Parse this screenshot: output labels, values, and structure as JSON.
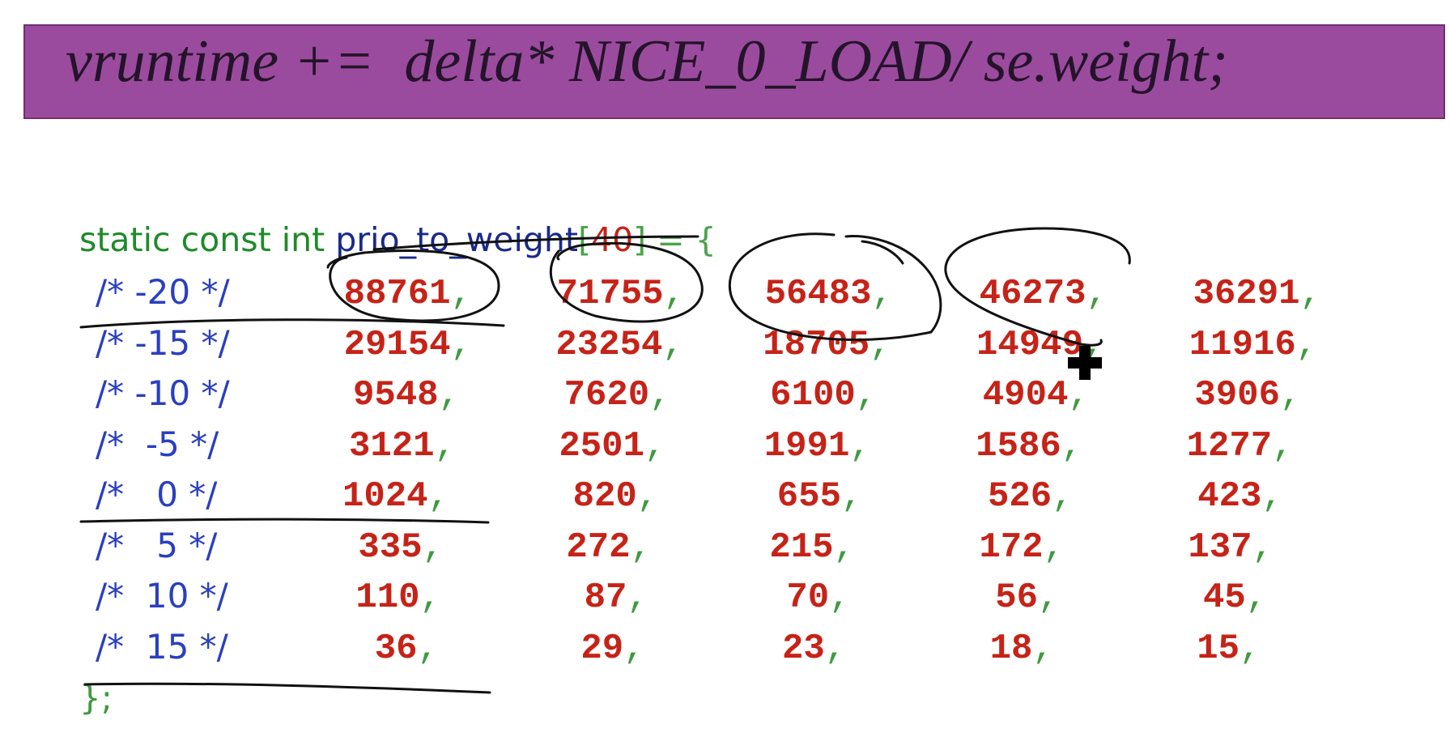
{
  "formula": "vruntime +=  delta* NICE_0_LOAD/ se.weight;",
  "declaration": {
    "kw_static": "static",
    "kw_const": "const",
    "kw_int": "int",
    "identifier": "prio_to_weight",
    "open_bracket": "[",
    "size": "40",
    "close_bracket": "]",
    "assign": " = {"
  },
  "rows": [
    {
      "comment": "/* -20 */",
      "values": [
        "88761",
        "71755",
        "56483",
        "46273",
        "36291"
      ]
    },
    {
      "comment": "/* -15 */",
      "values": [
        "29154",
        "23254",
        "18705",
        "14949",
        "11916"
      ]
    },
    {
      "comment": "/* -10 */",
      "values": [
        "9548",
        "7620",
        "6100",
        "4904",
        "3906"
      ]
    },
    {
      "comment": "/*  -5 */",
      "values": [
        "3121",
        "2501",
        "1991",
        "1586",
        "1277"
      ]
    },
    {
      "comment": "/*   0 */",
      "values": [
        "1024",
        "820",
        "655",
        "526",
        "423"
      ]
    },
    {
      "comment": "/*   5 */",
      "values": [
        "335",
        "272",
        "215",
        "172",
        "137"
      ]
    },
    {
      "comment": "/*  10 */",
      "values": [
        "110",
        "87",
        "70",
        "56",
        "45"
      ]
    },
    {
      "comment": "/*  15 */",
      "values": [
        "36",
        "29",
        "23",
        "18",
        "15"
      ]
    }
  ],
  "comma": ",",
  "closer": "};"
}
